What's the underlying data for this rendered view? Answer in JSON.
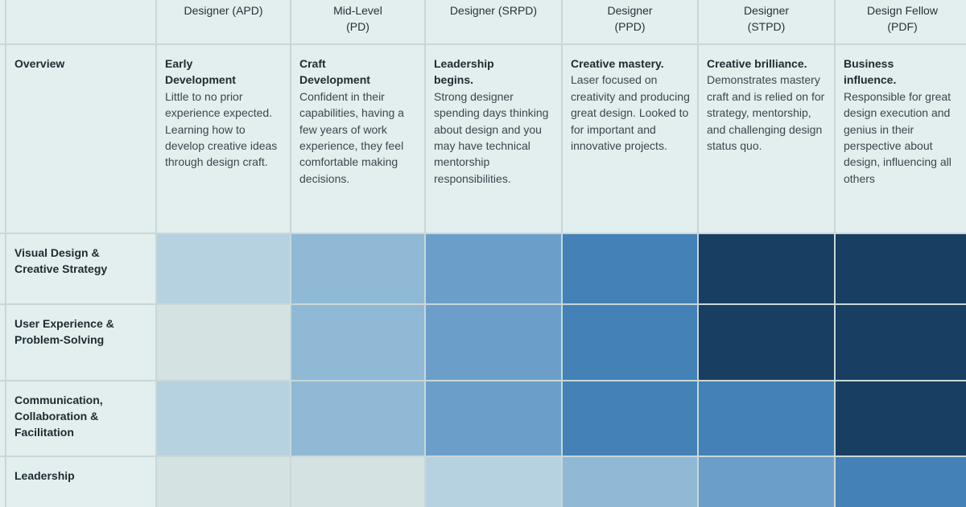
{
  "columns": [
    {
      "lines": [
        "Designer (APD)"
      ]
    },
    {
      "lines": [
        "Mid-Level",
        "(PD)"
      ]
    },
    {
      "lines": [
        "Designer (SRPD)"
      ]
    },
    {
      "lines": [
        "Designer",
        "(PPD)"
      ]
    },
    {
      "lines": [
        "Designer",
        "(STPD)"
      ]
    },
    {
      "lines": [
        "Design Fellow",
        "(PDF)"
      ]
    }
  ],
  "overview": {
    "label": "Overview",
    "cells": [
      {
        "lead": [
          "Early",
          "Development"
        ],
        "body": "Little to no prior experience expected. Learning how to develop creative ideas through design craft."
      },
      {
        "lead": [
          "Craft",
          "Development"
        ],
        "body": "Confident  in their capabilities, having a few years of work experience, they feel comfortable making decisions."
      },
      {
        "lead": [
          "Leadership",
          "begins."
        ],
        "body": "Strong designer spending days thinking about design and you may have technical mentorship responsibilities."
      },
      {
        "lead": [
          "Creative mastery."
        ],
        "body": "Laser focused on creativity and producing great design. Looked to for important  and innovative projects."
      },
      {
        "lead": [
          "Creative brilliance."
        ],
        "body": "Demonstrates mastery craft and is relied on for strategy, mentorship, and challenging design status quo."
      },
      {
        "lead": [
          "Business",
          "influence."
        ],
        "body": "Responsible for great design execution and genius in their perspective about design, influencing all others"
      }
    ]
  },
  "level_colors": [
    "#d5e2e2",
    "#b6d2e0",
    "#8fb9d5",
    "#6b9fc9",
    "#4381b6",
    "#183f62"
  ],
  "skills": [
    {
      "lines": [
        "Visual Design &",
        "Creative Strategy"
      ],
      "levels": [
        1,
        2,
        3,
        4,
        5,
        5
      ]
    },
    {
      "lines": [
        "User Experience &",
        "Problem-Solving"
      ],
      "levels": [
        0,
        2,
        3,
        4,
        5,
        5
      ]
    },
    {
      "lines": [
        "Communication,",
        "Collaboration &",
        "Facilitation"
      ],
      "levels": [
        1,
        2,
        3,
        4,
        4,
        5
      ]
    },
    {
      "lines": [
        "Leadership"
      ],
      "levels": [
        0,
        0,
        1,
        2,
        3,
        4
      ]
    }
  ]
}
